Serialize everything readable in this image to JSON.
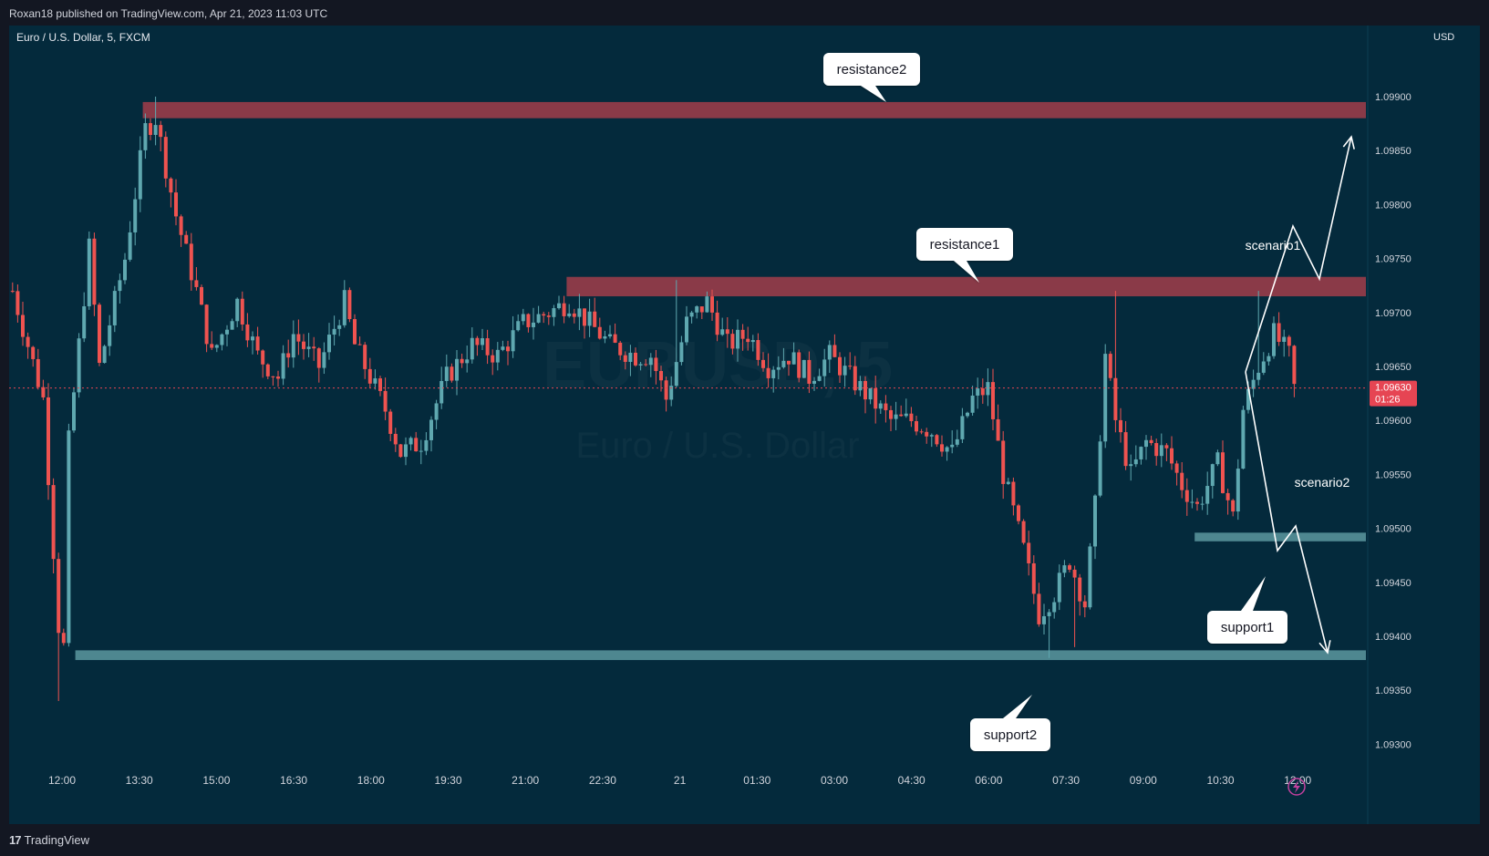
{
  "header": {
    "published": "Roxan18 published on TradingView.com, Apr 21, 2023 11:03 UTC",
    "symbol": "Euro / U.S. Dollar, 5, FXCM",
    "currency": "USD"
  },
  "watermark": {
    "ticker": "EURUSD, 5",
    "name": "Euro / U.S. Dollar"
  },
  "footer": {
    "brand": "TradingView",
    "logo_icon": "tradingview-logo-icon"
  },
  "colors": {
    "background": "#042a3c",
    "up_candle": "#5fa8b0",
    "down_candle": "#ef5350",
    "resistance_zone": "#8a3a48",
    "support_zone": "#4e8790",
    "price_label": "#e64553"
  },
  "chart_data": {
    "type": "candlestick",
    "title": "Euro / U.S. Dollar, 5, FXCM",
    "ylabel": "USD",
    "ylim": [
      1.0928,
      1.0998
    ],
    "y_ticks": [
      "1.09900",
      "1.09850",
      "1.09800",
      "1.09750",
      "1.09700",
      "1.09650",
      "1.09600",
      "1.09550",
      "1.09500",
      "1.09450",
      "1.09400",
      "1.09350",
      "1.09300"
    ],
    "x_ticks": [
      "12:00",
      "13:30",
      "15:00",
      "16:30",
      "18:00",
      "19:30",
      "21:00",
      "22:30",
      "21",
      "01:30",
      "03:00",
      "04:30",
      "06:00",
      "07:30",
      "09:00",
      "10:30",
      "12:00"
    ],
    "current_price": {
      "value": "1.09630",
      "countdown": "01:26"
    },
    "path": [
      [
        0,
        1.0972
      ],
      [
        6,
        1.0962
      ],
      [
        9,
        1.0941
      ],
      [
        10,
        1.0939
      ],
      [
        11,
        1.0958
      ],
      [
        15,
        1.0976
      ],
      [
        17,
        1.0965
      ],
      [
        22,
        1.0975
      ],
      [
        26,
        1.0987
      ],
      [
        28,
        1.0988
      ],
      [
        32,
        1.0979
      ],
      [
        36,
        1.0972
      ],
      [
        39,
        1.0966
      ],
      [
        44,
        1.0971
      ],
      [
        48,
        1.0966
      ],
      [
        52,
        1.0964
      ],
      [
        55,
        1.0968
      ],
      [
        60,
        1.0965
      ],
      [
        65,
        1.0971
      ],
      [
        67,
        1.0967
      ],
      [
        73,
        1.0961
      ],
      [
        76,
        1.0957
      ],
      [
        80,
        1.0958
      ],
      [
        85,
        1.0964
      ],
      [
        90,
        1.0967
      ],
      [
        95,
        1.0966
      ],
      [
        100,
        1.0969
      ],
      [
        105,
        1.097
      ],
      [
        109,
        1.0971
      ],
      [
        113,
        1.0969
      ],
      [
        117,
        1.0967
      ],
      [
        122,
        1.0966
      ],
      [
        125,
        1.0966
      ],
      [
        128,
        1.0962
      ],
      [
        132,
        1.0969
      ],
      [
        136,
        1.0971
      ],
      [
        140,
        1.0967
      ],
      [
        144,
        1.0968
      ],
      [
        148,
        1.0965
      ],
      [
        152,
        1.0966
      ],
      [
        156,
        1.0964
      ],
      [
        160,
        1.0966
      ],
      [
        164,
        1.0964
      ],
      [
        168,
        1.0962
      ],
      [
        172,
        1.096
      ],
      [
        176,
        1.096
      ],
      [
        180,
        1.0959
      ],
      [
        184,
        1.0957
      ],
      [
        188,
        1.0962
      ],
      [
        191,
        1.0963
      ],
      [
        194,
        1.0955
      ],
      [
        198,
        1.0948
      ],
      [
        201,
        1.0942
      ],
      [
        204,
        1.0944
      ],
      [
        207,
        1.0947
      ],
      [
        210,
        1.0943
      ],
      [
        212,
        1.0952
      ],
      [
        214,
        1.0966
      ],
      [
        216,
        1.096
      ],
      [
        219,
        1.0955
      ],
      [
        222,
        1.0958
      ],
      [
        226,
        1.0957
      ],
      [
        229,
        1.0954
      ],
      [
        232,
        1.0952
      ],
      [
        236,
        1.0956
      ],
      [
        239,
        1.0951
      ],
      [
        241,
        1.0961
      ],
      [
        244,
        1.0965
      ],
      [
        247,
        1.0968
      ],
      [
        250,
        1.0966
      ],
      [
        251,
        1.0963
      ]
    ],
    "spikes": [
      [
        9,
        1.0934
      ],
      [
        28,
        1.099
      ],
      [
        130,
        1.0973
      ],
      [
        203,
        1.0938
      ],
      [
        208,
        1.0939
      ],
      [
        216,
        1.0972
      ],
      [
        244,
        1.0972
      ]
    ],
    "zones": [
      {
        "name": "resistance2",
        "low": 1.0988,
        "high": 1.09895,
        "x_start": 26,
        "x_end": 263
      },
      {
        "name": "resistance1",
        "low": 1.09715,
        "high": 1.09733,
        "x_start": 109,
        "x_end": 263
      },
      {
        "name": "support1",
        "low": 1.09488,
        "high": 1.09496,
        "x_start": 232,
        "x_end": 263
      },
      {
        "name": "support2",
        "low": 1.09378,
        "high": 1.09387,
        "x_start": 6,
        "x_end": 263
      }
    ],
    "callouts": [
      {
        "label": "resistance2",
        "x": 154,
        "y": 1.09925
      },
      {
        "label": "resistance1",
        "x": 180,
        "y": 1.0977
      },
      {
        "label": "support1",
        "x": 232,
        "y": 1.09434
      },
      {
        "label": "support2",
        "x": 187,
        "y": 1.09338
      }
    ],
    "scenarios": [
      {
        "label": "scenario1",
        "points": [
          [
            251,
            1.0965
          ],
          [
            261,
            1.0979
          ],
          [
            267,
            1.0974
          ],
          [
            274,
            1.0987
          ]
        ]
      },
      {
        "label": "scenario2",
        "points": [
          [
            251,
            1.0965
          ],
          [
            258,
            1.095
          ],
          [
            263,
            1.0952
          ],
          [
            270,
            1.094
          ]
        ]
      }
    ]
  }
}
